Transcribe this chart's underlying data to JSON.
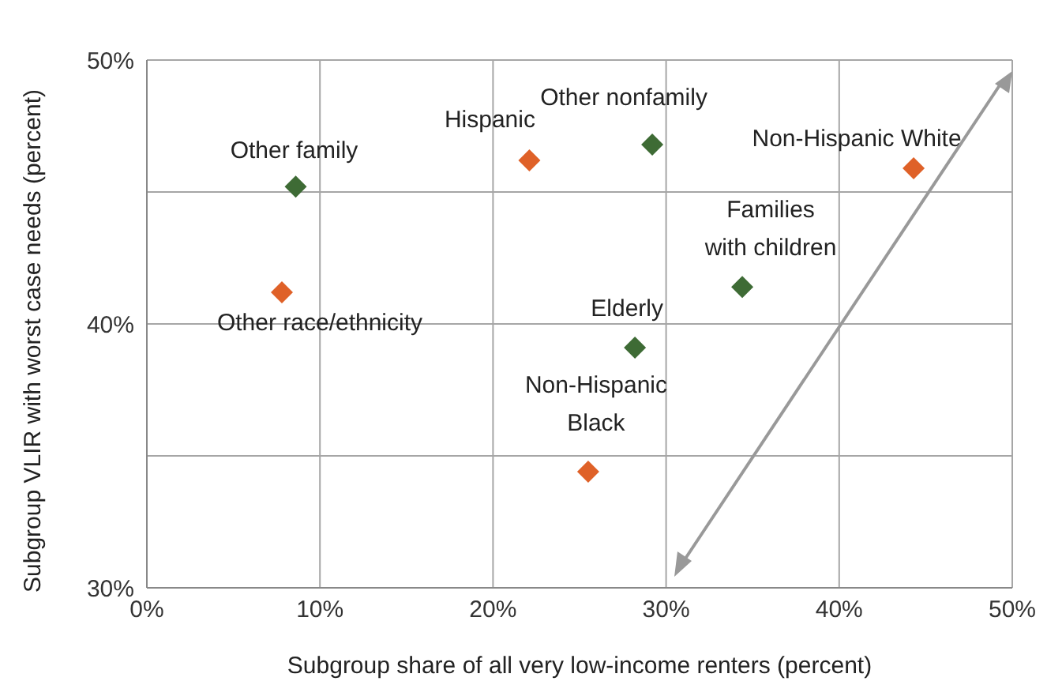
{
  "chart_data": {
    "type": "scatter",
    "xlabel": "Subgroup share of all very low-income renters (percent)",
    "ylabel": "Subgroup VLIR with worst case needs (percent)",
    "series": [
      {
        "color": "#3e6b35",
        "x": [
          8.6,
          29.2,
          34.4,
          28.2
        ],
        "values": [
          45.2,
          46.8,
          41.4,
          39.1
        ]
      },
      {
        "color": "#df6128",
        "x": [
          7.8,
          22.1,
          44.3,
          25.5
        ],
        "values": [
          41.2,
          46.2,
          45.9,
          34.4
        ]
      }
    ],
    "annotations": [
      {
        "text": "Other family",
        "x": 8.6,
        "y": 45.2
      },
      {
        "text": "Other race/ethnicity",
        "x": 7.8,
        "y": 41.2
      },
      {
        "text": "Hispanic",
        "x": 22.1,
        "y": 46.2
      },
      {
        "text": "Other nonfamily",
        "x": 29.2,
        "y": 46.8
      },
      {
        "text": "Non-Hispanic White",
        "x": 44.3,
        "y": 45.9
      },
      {
        "text": "Families with children",
        "x": 34.4,
        "y": 41.4
      },
      {
        "text": "Elderly",
        "x": 28.2,
        "y": 39.1
      },
      {
        "text": "Non-Hispanic Black",
        "x": 25.5,
        "y": 34.4
      }
    ],
    "xlim": [
      0,
      50
    ],
    "xticks": [
      {
        "value": 0,
        "label": "0%"
      },
      {
        "value": 10,
        "label": "10%"
      },
      {
        "value": 20,
        "label": "20%"
      },
      {
        "value": 30,
        "label": "30%"
      },
      {
        "value": 40,
        "label": "40%"
      },
      {
        "value": 50,
        "label": "50%"
      }
    ],
    "ylim": [
      30,
      50
    ],
    "yticks": [
      {
        "value": 30,
        "label": "30%"
      },
      {
        "value": 35,
        "label": null
      },
      {
        "value": 40,
        "label": "40%"
      },
      {
        "value": 45,
        "label": null
      },
      {
        "value": 50,
        "label": "50%"
      }
    ],
    "grid": true,
    "legend": false,
    "marker": "diamond"
  }
}
